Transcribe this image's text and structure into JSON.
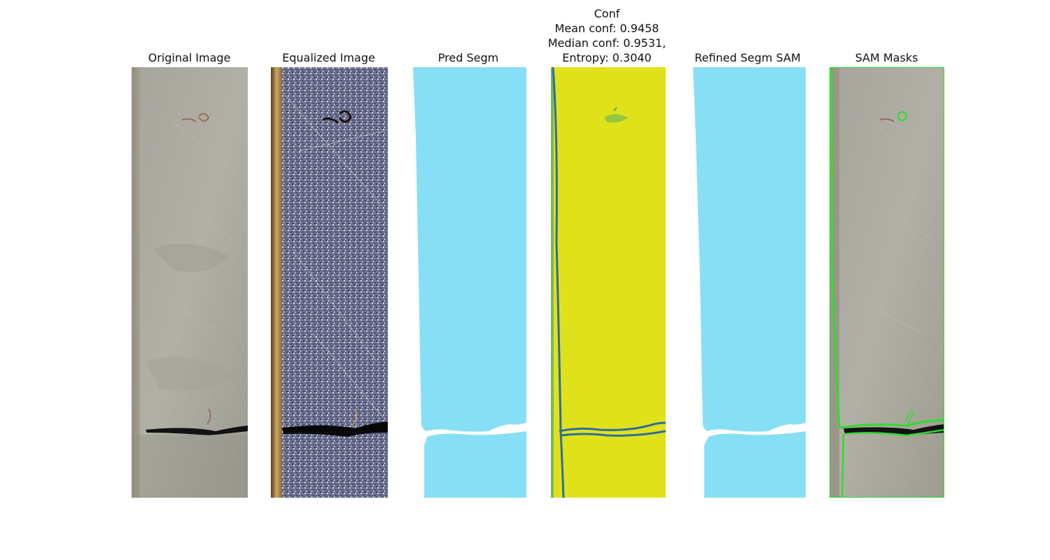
{
  "panels": [
    {
      "title": "Original Image"
    },
    {
      "title": "Equalized Image"
    },
    {
      "title": "Pred Segm"
    },
    {
      "title": "Conf",
      "stats": [
        "Mean conf: 0.9458",
        "Median conf: 0.9531,",
        "Entropy: 0.3040"
      ]
    },
    {
      "title": "Refined Segm SAM"
    },
    {
      "title": "SAM Masks"
    }
  ],
  "colors": {
    "segm_fill": "#87dff5",
    "conf_fill": "#dfe21b",
    "conf_boundary": "#2e6da0",
    "sam_mask": "#2fdc2f",
    "crack": "#121212",
    "stone": "#a9a79b"
  }
}
